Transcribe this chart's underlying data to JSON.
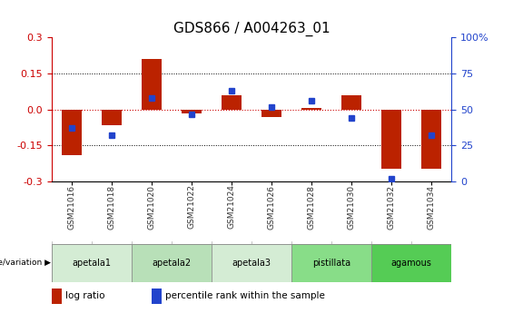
{
  "title": "GDS866 / A004263_01",
  "samples": [
    "GSM21016",
    "GSM21018",
    "GSM21020",
    "GSM21022",
    "GSM21024",
    "GSM21026",
    "GSM21028",
    "GSM21030",
    "GSM21032",
    "GSM21034"
  ],
  "log_ratio": [
    -0.19,
    -0.065,
    0.21,
    -0.015,
    0.06,
    -0.03,
    0.005,
    0.06,
    -0.245,
    -0.245
  ],
  "percentile_rank_raw": [
    37,
    32,
    58,
    47,
    63,
    52,
    56,
    44,
    2,
    32
  ],
  "ylim": [
    -0.3,
    0.3
  ],
  "yticks_left": [
    -0.3,
    -0.15,
    0.0,
    0.15,
    0.3
  ],
  "yticks_right": [
    0,
    25,
    50,
    75,
    100
  ],
  "bar_color": "#bb2200",
  "dot_color": "#2244cc",
  "zero_line_color": "#cc0000",
  "groups": [
    {
      "label": "apetala1",
      "start": 0,
      "end": 1,
      "color": "#d4ecd4"
    },
    {
      "label": "apetala2",
      "start": 2,
      "end": 3,
      "color": "#b8e0b8"
    },
    {
      "label": "apetala3",
      "start": 4,
      "end": 5,
      "color": "#d4ecd4"
    },
    {
      "label": "pistillata",
      "start": 6,
      "end": 7,
      "color": "#88dd88"
    },
    {
      "label": "agamous",
      "start": 8,
      "end": 9,
      "color": "#55cc55"
    }
  ],
  "background_color": "#ffffff",
  "title_fontsize": 11,
  "tick_fontsize": 8,
  "bar_width": 0.5
}
